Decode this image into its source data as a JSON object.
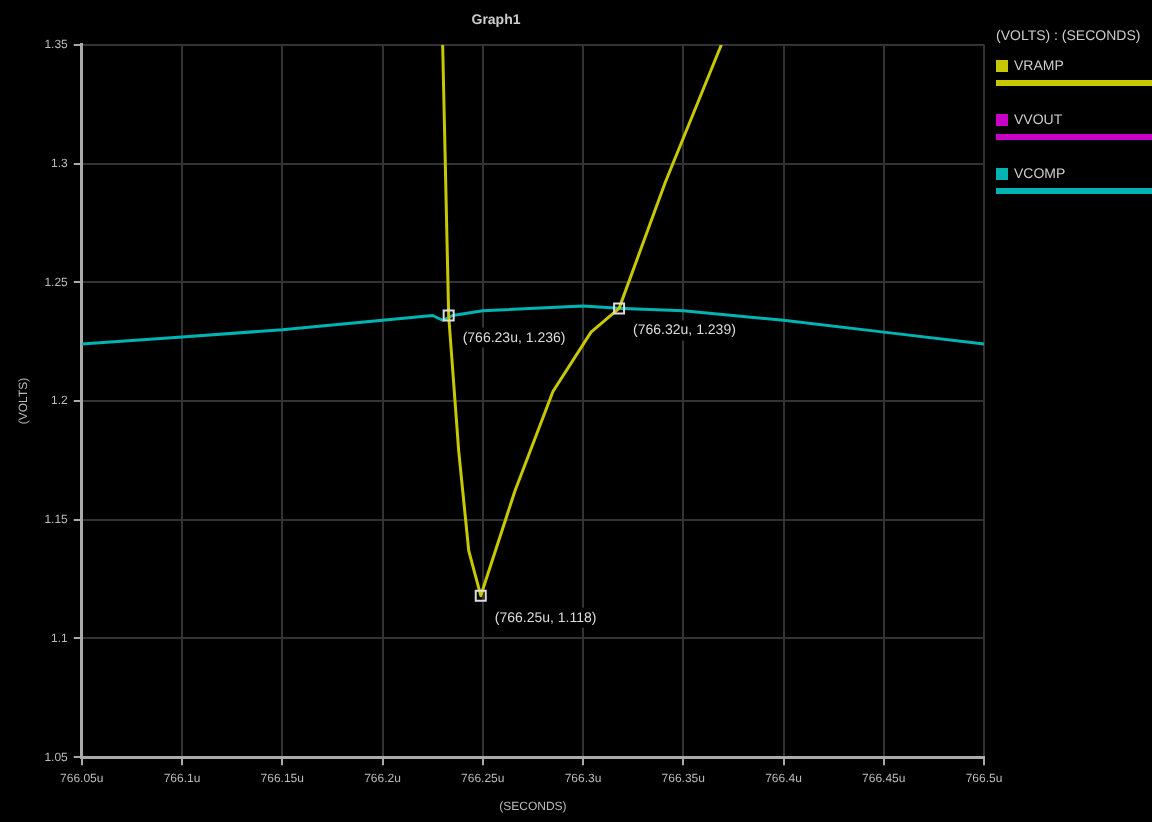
{
  "chart_data": {
    "type": "line",
    "title": "Graph1",
    "xlabel": "(SECONDS)",
    "ylabel": "(VOLTS)",
    "legend_title": "(VOLTS) : (SECONDS)",
    "legend": "top right",
    "grid": true,
    "marker": "none",
    "line_style": "solid",
    "xlim": [
      766.05,
      766.5
    ],
    "ylim": [
      1.05,
      1.35
    ],
    "xticks": [
      {
        "value": 766.05,
        "label": "766.05u"
      },
      {
        "value": 766.1,
        "label": "766.1u"
      },
      {
        "value": 766.15,
        "label": "766.15u"
      },
      {
        "value": 766.2,
        "label": "766.2u"
      },
      {
        "value": 766.25,
        "label": "766.25u"
      },
      {
        "value": 766.3,
        "label": "766.3u"
      },
      {
        "value": 766.35,
        "label": "766.35u"
      },
      {
        "value": 766.4,
        "label": "766.4u"
      },
      {
        "value": 766.45,
        "label": "766.45u"
      },
      {
        "value": 766.5,
        "label": "766.5u"
      }
    ],
    "yticks": [
      1.05,
      1.1,
      1.15,
      1.2,
      1.25,
      1.3,
      1.35
    ],
    "series": [
      {
        "name": "VRAMP",
        "color": "#c8c800",
        "x": [
          766.23,
          766.233,
          766.238,
          766.243,
          766.249,
          766.266,
          766.285,
          766.304,
          766.318,
          766.341,
          766.369
        ],
        "values": [
          1.35,
          1.236,
          1.179,
          1.137,
          1.118,
          1.162,
          1.204,
          1.229,
          1.239,
          1.292,
          1.35
        ]
      },
      {
        "name": "VVOUT",
        "color": "#c800c8"
      },
      {
        "name": "VCOMP",
        "color": "#00b4b4",
        "x": [
          766.05,
          766.1,
          766.15,
          766.2,
          766.225,
          766.23,
          766.235,
          766.25,
          766.3,
          766.32,
          766.35,
          766.4,
          766.45,
          766.5
        ],
        "values": [
          1.224,
          1.227,
          1.23,
          1.234,
          1.236,
          1.234,
          1.236,
          1.238,
          1.24,
          1.239,
          1.238,
          1.234,
          1.229,
          1.224
        ]
      }
    ],
    "annotations": [
      {
        "text": "(766.23u, 1.236)",
        "x": 766.233,
        "y": 1.236
      },
      {
        "text": "(766.32u, 1.239)",
        "x": 766.318,
        "y": 1.239
      },
      {
        "text": "(766.25u, 1.118)",
        "x": 766.249,
        "y": 1.118
      }
    ]
  }
}
